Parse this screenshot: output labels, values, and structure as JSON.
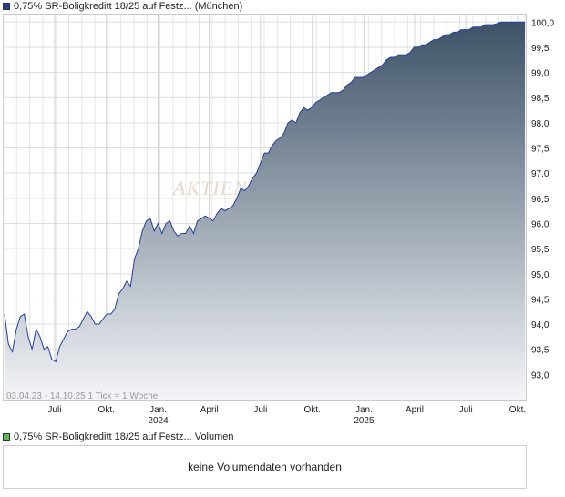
{
  "header": {
    "title": "0,75% SR-Boligkreditt 18/25 auf Festz... (München)",
    "color": "#1f3f9f"
  },
  "watermark": "AKTIEN",
  "footnote": "03.04.23 - 14.10.25   1 Tick = 1 Woche",
  "volume": {
    "title": "0,75% SR-Boligkreditt 18/25 auf Festz... Volumen",
    "color": "#5cb85c",
    "empty_text": "keine Volumendaten vorhanden"
  },
  "chart_data": {
    "type": "area",
    "title": "0,75% SR-Boligkreditt 18/25 auf Festz... (München)",
    "ylim": [
      92.5,
      100.15
    ],
    "y_ticks": [
      "93,0",
      "93,5",
      "94,0",
      "94,5",
      "95,0",
      "95,5",
      "96,0",
      "96,5",
      "97,0",
      "97,5",
      "98,0",
      "98,5",
      "99,0",
      "99,5",
      "100,0"
    ],
    "x_ticks": [
      {
        "label": "Juli",
        "year": "",
        "date": "2023-07-01"
      },
      {
        "label": "Okt.",
        "year": "",
        "date": "2023-10-01"
      },
      {
        "label": "Jan.",
        "year": "2024",
        "date": "2024-01-01"
      },
      {
        "label": "April",
        "year": "",
        "date": "2024-04-01"
      },
      {
        "label": "Juli",
        "year": "",
        "date": "2024-07-01"
      },
      {
        "label": "Okt.",
        "year": "",
        "date": "2024-10-01"
      },
      {
        "label": "Jan.",
        "year": "2025",
        "date": "2025-01-01"
      },
      {
        "label": "April",
        "year": "",
        "date": "2025-04-01"
      },
      {
        "label": "Juli",
        "year": "",
        "date": "2025-07-01"
      },
      {
        "label": "Okt.",
        "year": "",
        "date": "2025-10-01"
      }
    ],
    "x_range": [
      "2023-04-03",
      "2025-10-14"
    ],
    "grid": true,
    "line_color": "#1f3f9f",
    "fill_top_color": "#3d5267",
    "fill_bottom_color": "#f4f5f8",
    "series": [
      {
        "points": [
          [
            "2023-04-03",
            94.2
          ],
          [
            "2023-04-10",
            93.6
          ],
          [
            "2023-04-17",
            93.45
          ],
          [
            "2023-04-24",
            93.9
          ],
          [
            "2023-05-01",
            94.15
          ],
          [
            "2023-05-08",
            94.2
          ],
          [
            "2023-05-15",
            93.75
          ],
          [
            "2023-05-22",
            93.5
          ],
          [
            "2023-05-29",
            93.9
          ],
          [
            "2023-06-05",
            93.75
          ],
          [
            "2023-06-12",
            93.5
          ],
          [
            "2023-06-19",
            93.55
          ],
          [
            "2023-06-26",
            93.3
          ],
          [
            "2023-07-03",
            93.25
          ],
          [
            "2023-07-10",
            93.55
          ],
          [
            "2023-07-17",
            93.7
          ],
          [
            "2023-07-24",
            93.85
          ],
          [
            "2023-07-31",
            93.9
          ],
          [
            "2023-08-07",
            93.9
          ],
          [
            "2023-08-14",
            93.95
          ],
          [
            "2023-08-21",
            94.1
          ],
          [
            "2023-08-28",
            94.25
          ],
          [
            "2023-09-04",
            94.15
          ],
          [
            "2023-09-11",
            94.0
          ],
          [
            "2023-09-18",
            94.0
          ],
          [
            "2023-09-25",
            94.1
          ],
          [
            "2023-10-02",
            94.2
          ],
          [
            "2023-10-09",
            94.2
          ],
          [
            "2023-10-16",
            94.3
          ],
          [
            "2023-10-23",
            94.6
          ],
          [
            "2023-10-30",
            94.7
          ],
          [
            "2023-11-06",
            94.85
          ],
          [
            "2023-11-13",
            94.75
          ],
          [
            "2023-11-20",
            95.3
          ],
          [
            "2023-11-27",
            95.5
          ],
          [
            "2023-12-04",
            95.85
          ],
          [
            "2023-12-11",
            96.05
          ],
          [
            "2023-12-18",
            96.1
          ],
          [
            "2023-12-25",
            95.85
          ],
          [
            "2024-01-01",
            96.0
          ],
          [
            "2024-01-08",
            95.8
          ],
          [
            "2024-01-15",
            96.0
          ],
          [
            "2024-01-22",
            96.05
          ],
          [
            "2024-01-29",
            95.85
          ],
          [
            "2024-02-05",
            95.75
          ],
          [
            "2024-02-12",
            95.8
          ],
          [
            "2024-02-19",
            95.8
          ],
          [
            "2024-02-26",
            95.95
          ],
          [
            "2024-03-04",
            95.8
          ],
          [
            "2024-03-11",
            96.05
          ],
          [
            "2024-03-18",
            96.1
          ],
          [
            "2024-03-25",
            96.15
          ],
          [
            "2024-04-01",
            96.1
          ],
          [
            "2024-04-08",
            96.05
          ],
          [
            "2024-04-15",
            96.2
          ],
          [
            "2024-04-22",
            96.3
          ],
          [
            "2024-04-29",
            96.25
          ],
          [
            "2024-05-06",
            96.3
          ],
          [
            "2024-05-13",
            96.35
          ],
          [
            "2024-05-20",
            96.5
          ],
          [
            "2024-05-27",
            96.7
          ],
          [
            "2024-06-03",
            96.65
          ],
          [
            "2024-06-10",
            96.75
          ],
          [
            "2024-06-17",
            96.9
          ],
          [
            "2024-06-24",
            97.0
          ],
          [
            "2024-07-01",
            97.2
          ],
          [
            "2024-07-08",
            97.4
          ],
          [
            "2024-07-15",
            97.4
          ],
          [
            "2024-07-22",
            97.55
          ],
          [
            "2024-07-29",
            97.65
          ],
          [
            "2024-08-05",
            97.7
          ],
          [
            "2024-08-12",
            97.8
          ],
          [
            "2024-08-19",
            98.0
          ],
          [
            "2024-08-26",
            98.05
          ],
          [
            "2024-09-02",
            98.0
          ],
          [
            "2024-09-09",
            98.2
          ],
          [
            "2024-09-16",
            98.3
          ],
          [
            "2024-09-23",
            98.25
          ],
          [
            "2024-09-30",
            98.3
          ],
          [
            "2024-10-07",
            98.4
          ],
          [
            "2024-10-14",
            98.45
          ],
          [
            "2024-10-21",
            98.5
          ],
          [
            "2024-10-28",
            98.55
          ],
          [
            "2024-11-04",
            98.6
          ],
          [
            "2024-11-11",
            98.6
          ],
          [
            "2024-11-18",
            98.6
          ],
          [
            "2024-11-25",
            98.65
          ],
          [
            "2024-12-02",
            98.75
          ],
          [
            "2024-12-09",
            98.8
          ],
          [
            "2024-12-16",
            98.9
          ],
          [
            "2024-12-23",
            98.9
          ],
          [
            "2024-12-30",
            98.9
          ],
          [
            "2025-01-06",
            98.95
          ],
          [
            "2025-01-13",
            99.0
          ],
          [
            "2025-01-20",
            99.05
          ],
          [
            "2025-01-27",
            99.1
          ],
          [
            "2025-02-03",
            99.15
          ],
          [
            "2025-02-10",
            99.25
          ],
          [
            "2025-02-17",
            99.3
          ],
          [
            "2025-02-24",
            99.3
          ],
          [
            "2025-03-03",
            99.35
          ],
          [
            "2025-03-10",
            99.35
          ],
          [
            "2025-03-17",
            99.35
          ],
          [
            "2025-03-24",
            99.4
          ],
          [
            "2025-03-31",
            99.5
          ],
          [
            "2025-04-07",
            99.5
          ],
          [
            "2025-04-14",
            99.55
          ],
          [
            "2025-04-21",
            99.55
          ],
          [
            "2025-04-28",
            99.6
          ],
          [
            "2025-05-05",
            99.65
          ],
          [
            "2025-05-12",
            99.65
          ],
          [
            "2025-05-19",
            99.7
          ],
          [
            "2025-05-26",
            99.75
          ],
          [
            "2025-06-02",
            99.75
          ],
          [
            "2025-06-09",
            99.8
          ],
          [
            "2025-06-16",
            99.8
          ],
          [
            "2025-06-23",
            99.85
          ],
          [
            "2025-06-30",
            99.85
          ],
          [
            "2025-07-07",
            99.85
          ],
          [
            "2025-07-14",
            99.9
          ],
          [
            "2025-07-21",
            99.9
          ],
          [
            "2025-07-28",
            99.9
          ],
          [
            "2025-08-04",
            99.95
          ],
          [
            "2025-08-11",
            99.95
          ],
          [
            "2025-08-18",
            99.95
          ],
          [
            "2025-08-25",
            99.97
          ],
          [
            "2025-09-01",
            100.0
          ],
          [
            "2025-09-08",
            100.0
          ],
          [
            "2025-09-15",
            100.0
          ],
          [
            "2025-09-22",
            100.0
          ],
          [
            "2025-09-29",
            100.0
          ],
          [
            "2025-10-06",
            100.0
          ],
          [
            "2025-10-14",
            100.0
          ]
        ]
      }
    ]
  }
}
